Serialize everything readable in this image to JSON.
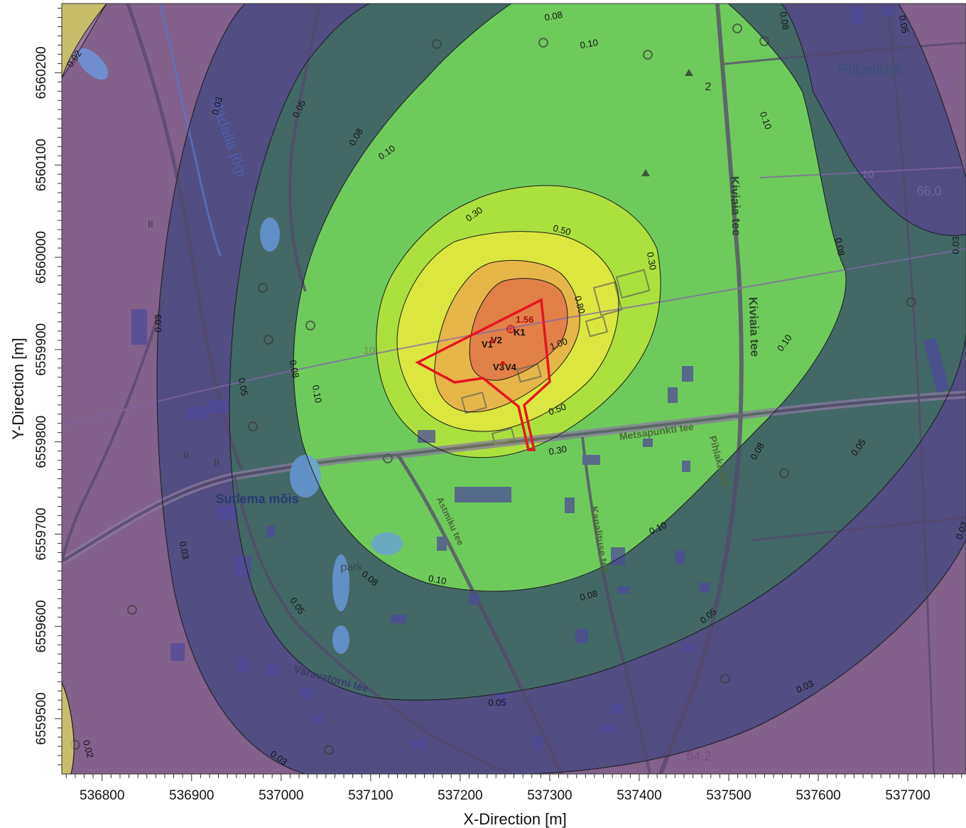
{
  "axes": {
    "xlabel": "X-Direction [m]",
    "ylabel": "Y-Direction [m]",
    "xticks": [
      536800,
      536900,
      537000,
      537100,
      537200,
      537300,
      537400,
      537500,
      537600,
      537700
    ],
    "yticks": [
      6559500,
      6559600,
      6559700,
      6559800,
      6559900,
      6560000,
      6560100,
      6560200
    ],
    "xlim": [
      536755,
      537765
    ],
    "ylim": [
      6559440,
      6560275
    ]
  },
  "contours": [
    {
      "level": "0.02",
      "color": "#c8c068"
    },
    {
      "level": "0.03",
      "color": "#7e5d86"
    },
    {
      "level": "0.05",
      "color": "#4a4a80"
    },
    {
      "level": "0.08",
      "color": "#3f6e62"
    },
    {
      "level": "0.10",
      "color": "#74d85a"
    },
    {
      "level": "0.30",
      "color": "#b2e23c"
    },
    {
      "level": "0.50",
      "color": "#e0e840"
    },
    {
      "level": "0.80",
      "color": "#e8b04a"
    },
    {
      "level": "1.00",
      "color": "#e07a48"
    }
  ],
  "map_labels": [
    {
      "text": "Piibelehe"
    },
    {
      "text": "Mädalla jõgi"
    },
    {
      "text": "Kiviaia tee"
    },
    {
      "text": "Kiviaia tee"
    },
    {
      "text": "Sutlema mõis"
    },
    {
      "text": "park"
    },
    {
      "text": "Metsapunkti tee"
    },
    {
      "text": "Pihlaka tee"
    },
    {
      "text": "Väravatorni tee"
    },
    {
      "text": "Kanalituse tee"
    },
    {
      "text": "Astmiku tee"
    },
    {
      "text": "10"
    },
    {
      "text": "10"
    },
    {
      "text": "10"
    },
    {
      "text": "2"
    },
    {
      "text": "66.0"
    },
    {
      "text": "64.2"
    },
    {
      "text": "II"
    },
    {
      "text": "II"
    },
    {
      "text": "II"
    }
  ],
  "sources": {
    "max_value": "1.56",
    "labels": [
      "K1",
      "V1",
      "V2",
      "V3",
      "V4"
    ]
  },
  "colors": {
    "boundary": "#e8141e",
    "road": "#55486c",
    "roadcase": "#8a7a9e",
    "water": "#6a9ee6"
  }
}
